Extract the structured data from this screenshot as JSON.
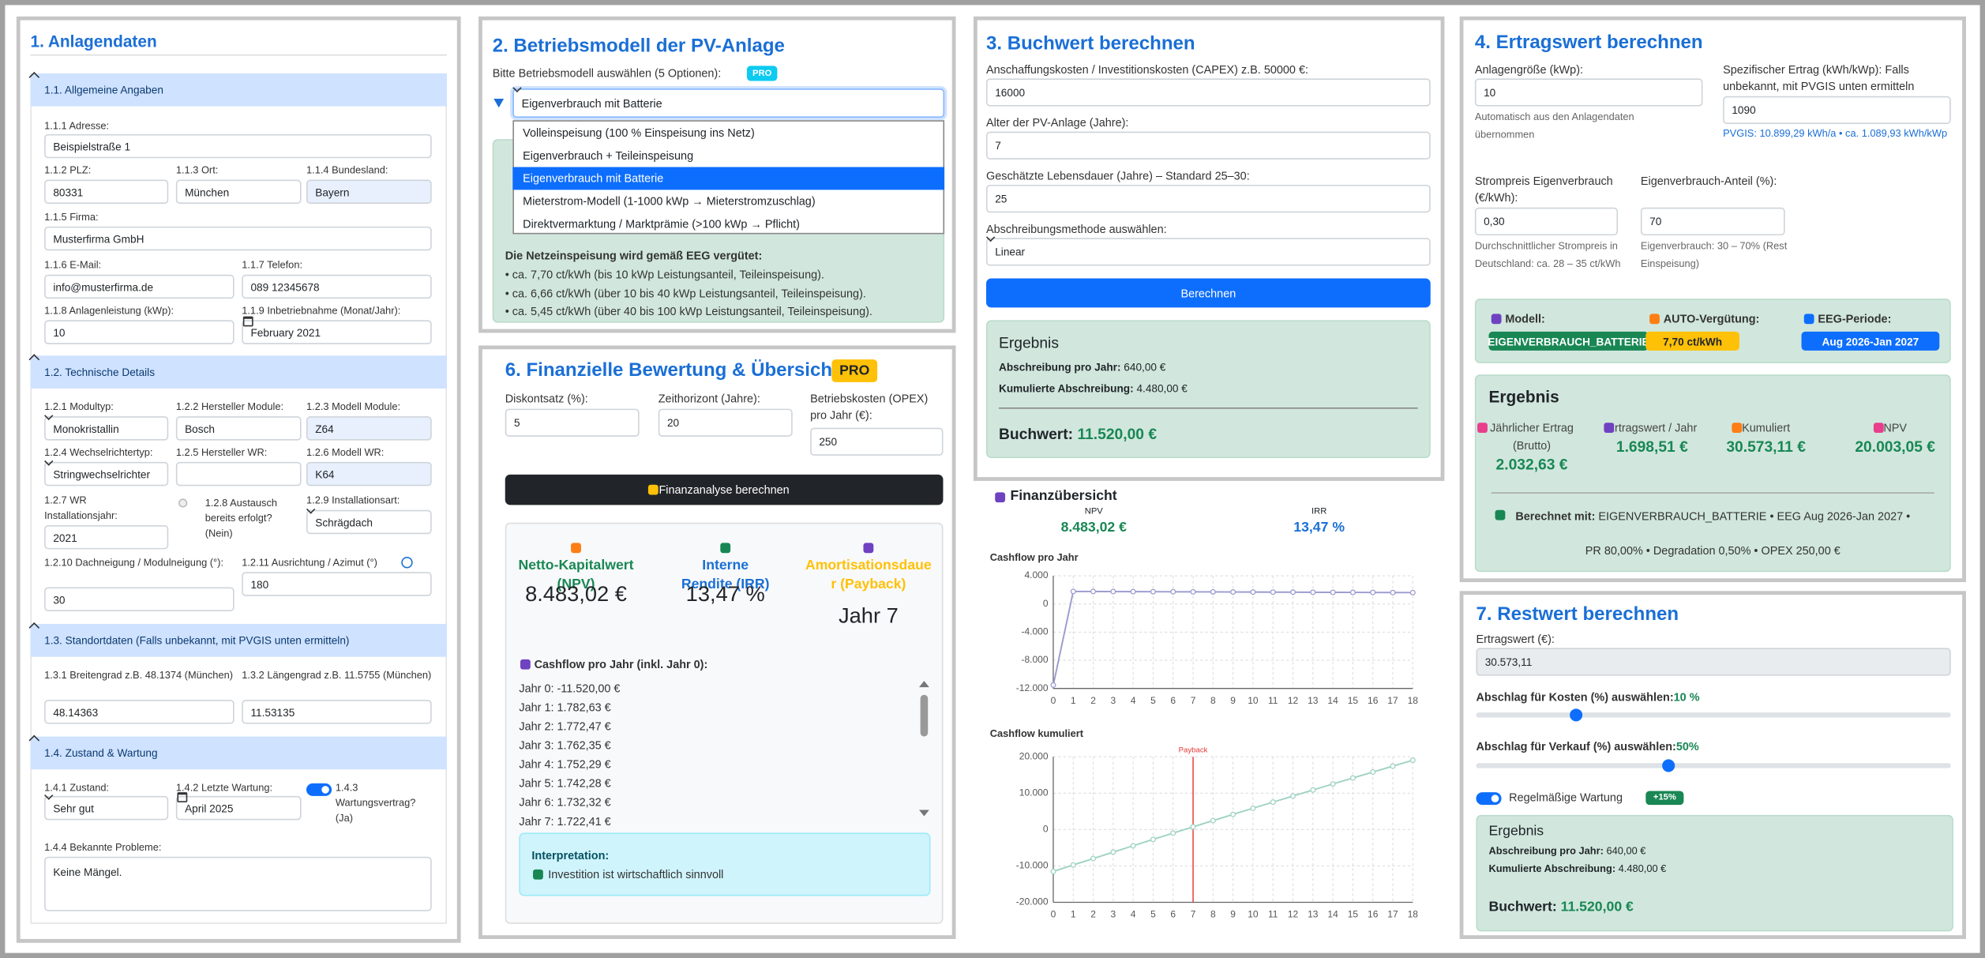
{
  "p1": {
    "title": "1. Anlagendaten",
    "s": [
      {
        "title": "1.1. Allgemeine Angaben",
        "f": [
          {
            "label": "1.1.1 Adresse:",
            "value": "Beispielstraße 1"
          },
          {
            "label": "1.1.2 PLZ:",
            "value": "80331"
          },
          {
            "label": "1.1.3 Ort:",
            "value": "München"
          },
          {
            "label": "1.1.4 Bundesland:",
            "value": "Bayern"
          },
          {
            "label": "1.1.5 Firma:",
            "value": "Musterfirma GmbH"
          },
          {
            "label": "1.1.6 E-Mail:",
            "value": "info@musterfirma.de"
          },
          {
            "label": "1.1.7 Telefon:",
            "value": "089 12345678"
          },
          {
            "label": "1.1.8 Anlagenleistung (kWp):",
            "value": "10"
          },
          {
            "label": "1.1.9 Inbetriebnahme (Monat/Jahr):",
            "value": "February 2021"
          }
        ]
      },
      {
        "title": "1.2. Technische Details",
        "f": [
          {
            "label": "1.2.1 Modultyp:",
            "value": "Monokristallin"
          },
          {
            "label": "1.2.2 Hersteller Module:",
            "value": "Bosch"
          },
          {
            "label": "1.2.3 Modell Module:",
            "value": "Z64"
          },
          {
            "label": "1.2.4 Wechselrichtertyp:",
            "value": "Stringwechselrichter"
          },
          {
            "label": "1.2.5 Hersteller WR:"
          },
          {
            "label": "1.2.6 Modell WR:",
            "value": "K64"
          },
          {
            "label": "1.2.7 WR Installationsjahr:",
            "value": "2021"
          },
          {
            "label": "1.2.8 Austausch bereits erfolgt? (Nein)"
          },
          {
            "label": "1.2.9 Installationsart:",
            "value": "Schrägdach"
          },
          {
            "label": "1.2.10 Dachneigung / Modulneigung (°):",
            "value": "30"
          },
          {
            "label": "1.2.11 Ausrichtung / Azimut (°)",
            "value": "180"
          }
        ]
      },
      {
        "title": "1.3. Standortdaten (Falls unbekannt, mit PVGIS unten ermitteln)",
        "f": [
          {
            "label": "1.3.1 Breitengrad z.B. 48.1374 (München)",
            "value": "48.14363"
          },
          {
            "label": "1.3.2 Längengrad z.B. 11.5755 (München)",
            "value": "11.53135"
          }
        ]
      },
      {
        "title": "1.4. Zustand & Wartung",
        "f": [
          {
            "label": "1.4.1 Zustand:",
            "value": "Sehr gut"
          },
          {
            "label": "1.4.2 Letzte Wartung:",
            "value": "April 2025"
          },
          {
            "label": "1.4.3 Wartungsvertrag? (Ja)"
          },
          {
            "label": "1.4.4 Bekannte Probleme:",
            "value": "Keine Mängel."
          }
        ]
      }
    ]
  },
  "p2": {
    "title": "2. Betriebsmodell der PV-Anlage",
    "prompt": "Bitte Betriebsmodell auswählen (5 Optionen):",
    "badge": "PRO",
    "selected": "Eigenverbrauch mit Batterie",
    "options": [
      "Volleinspeisung (100 % Einspeisung ins Netz)",
      "Eigenverbrauch + Teileinspeisung",
      "Eigenverbrauch mit Batterie",
      "Mieterstrom-Modell (1-1000 kWp → Mieterstromzuschlag)",
      "Direktvermarktung / Marktprämie (>100 kWp → Pflicht)"
    ],
    "eeg_title": "Die Netzeinspeisung wird gemäß EEG vergütet:",
    "eeg": [
      "• ca. 7,70 ct/kWh (bis 10 kWp Leistungsanteil, Teileinspeisung).",
      "• ca. 6,66 ct/kWh (über 10 bis 40 kWp Leistungsanteil, Teileinspeisung).",
      "• ca. 5,45 ct/kWh (über 40 bis 100 kWp Leistungsanteil, Teileinspeisung)."
    ]
  },
  "p3": {
    "title": "3. Buchwert berechnen",
    "f": [
      {
        "label": "Anschaffungskosten / Investitionskosten (CAPEX) z.B. 50000 €:",
        "value": "16000"
      },
      {
        "label": "Alter der PV-Anlage (Jahre):",
        "value": "7"
      },
      {
        "label": "Geschätzte Lebensdauer (Jahre) – Standard 25–30:",
        "value": "25"
      },
      {
        "label": "Abschreibungsmethode auswählen:",
        "value": "Linear"
      }
    ],
    "button": "Berechnen",
    "result": {
      "title": "Ergebnis",
      "rows": [
        {
          "label": "Abschreibung pro Jahr:",
          "value": "640,00 €"
        },
        {
          "label": "Kumulierte Abschreibung:",
          "value": "4.480,00 €"
        }
      ],
      "total": {
        "label": "Buchwert:",
        "value": "11.520,00 €"
      }
    }
  },
  "p4": {
    "title": "4. Ertragswert berechnen",
    "f": [
      {
        "label": "Anlagengröße (kWp):",
        "value": "10",
        "note": "Automatisch aus den Anlagendaten übernommen"
      },
      {
        "label": "Spezifischer Ertrag (kWh/kWp): Falls unbekannt, mit PVGIS unten ermitteln",
        "value": "1090",
        "note": "PVGIS: 10.899,29 kWh/a • ca. 1.089,93 kWh/kWp"
      },
      {
        "label": "Strompreis Eigenverbrauch (€/kWh):",
        "value": "0,30",
        "note": "Durchschnittlicher Strompreis in Deutschland: ca. 28 – 35 ct/kWh"
      },
      {
        "label": "Eigenverbrauch-Anteil (%):",
        "value": "70",
        "note": "Eigenverbrauch: 30 – 70% (Rest Einspeisung)"
      }
    ],
    "info": [
      {
        "label": "Modell:",
        "value": "EIGENVERBRAUCH_BATTERIE"
      },
      {
        "label": "AUTO-Vergütung:",
        "value": "7,70 ct/kWh"
      },
      {
        "label": "EEG-Periode:",
        "value": "Aug 2026-Jan 2027"
      }
    ],
    "result": {
      "title": "Ergebnis",
      "kpis": [
        {
          "label": "Jährlicher Ertrag (Brutto)",
          "value": "2.032,63 €"
        },
        {
          "label": "Ertragswert / Jahr",
          "value": "1.698,51 €"
        },
        {
          "label": "Kumuliert",
          "value": "30.573,11 €"
        },
        {
          "label": "NPV",
          "value": "20.003,05 €"
        }
      ],
      "basis_label": "Berechnet mit:",
      "basis": "EIGENVERBRAUCH_BATTERIE • EEG Aug 2026-Jan 2027 •",
      "params": "PR 80,00% • Degradation 0,50% • OPEX 250,00 €"
    }
  },
  "p6": {
    "title": "6. Finanzielle Bewertung & Übersicht",
    "badge": "PRO",
    "f": [
      {
        "label": "Diskontsatz (%):",
        "value": "5"
      },
      {
        "label": "Zeithorizont (Jahre):",
        "value": "20"
      },
      {
        "label": "Betriebskosten (OPEX) pro Jahr (€):",
        "value": "250"
      }
    ],
    "button": "Finanzanalyse berechnen",
    "kpis": [
      {
        "label": "Netto-Kapitalwert (NPV)",
        "value": "8.483,02 €"
      },
      {
        "label": "Interne Rendite (IRR)",
        "value": "13,47 %"
      },
      {
        "label": "Amortisationsdauer (Payback)",
        "value": "Jahr 7"
      }
    ],
    "cf_title": "Cashflow pro Jahr (inkl. Jahr 0):",
    "cf": [
      "Jahr 0: -11.520,00 €",
      "Jahr 1: 1.782,63 €",
      "Jahr 2: 1.772,47 €",
      "Jahr 3: 1.762,35 €",
      "Jahr 4: 1.752,29 €",
      "Jahr 5: 1.742,28 €",
      "Jahr 6: 1.732,32 €",
      "Jahr 7: 1.722,41 €"
    ],
    "interp_title": "Interpretation:",
    "interp": "Investition ist wirtschaftlich sinnvoll"
  },
  "overview": {
    "title": "Finanzübersicht",
    "kpis": [
      {
        "label": "NPV",
        "value": "8.483,02 €"
      },
      {
        "label": "IRR",
        "value": "13,47 %"
      }
    ]
  },
  "chart_data": [
    {
      "type": "line",
      "title": "Cashflow pro Jahr",
      "x": [
        0,
        1,
        2,
        3,
        4,
        5,
        6,
        7,
        8,
        9,
        10,
        11,
        12,
        13,
        14,
        15,
        16,
        17,
        18
      ],
      "series": [
        {
          "color": "#9b9bd0",
          "values": [
            -11520,
            1782.63,
            1772.47,
            1762.35,
            1752.29,
            1742.28,
            1732.32,
            1722.41,
            1712.5,
            1702.7,
            1693,
            1683.3,
            1673.6,
            1664,
            1654.5,
            1645,
            1635.6,
            1626.3,
            1617
          ]
        }
      ],
      "xlim": [
        0,
        18
      ],
      "xticks": [
        0,
        1,
        2,
        3,
        4,
        5,
        6,
        7,
        8,
        9,
        10,
        11,
        12,
        13,
        14,
        15,
        16,
        17,
        18
      ],
      "ylim": [
        -12000,
        4000
      ],
      "yticks": [
        {
          "value": -12000,
          "label": "-12.000"
        },
        {
          "value": -8000,
          "label": "-8.000"
        },
        {
          "value": -4000,
          "label": "-4.000"
        },
        0,
        {
          "value": 4000,
          "label": "4.000"
        }
      ],
      "grid": true
    },
    {
      "type": "line",
      "title": "Cashflow kumuliert",
      "x": [
        0,
        1,
        2,
        3,
        4,
        5,
        6,
        7,
        8,
        9,
        10,
        11,
        12,
        13,
        14,
        15,
        16,
        17,
        18
      ],
      "series": [
        {
          "color": "#9fd3c4",
          "values": [
            -11520,
            -9737.37,
            -7964.9,
            -6202.55,
            -4450.26,
            -2707.98,
            -975.66,
            746.75,
            2459.25,
            4161.95,
            5854.95,
            7538.25,
            9211.85,
            10875.85,
            12530.35,
            14175.35,
            15810.95,
            17437.25,
            19054.25
          ]
        }
      ],
      "xlim": [
        0,
        18
      ],
      "xticks": [
        0,
        1,
        2,
        3,
        4,
        5,
        6,
        7,
        8,
        9,
        10,
        11,
        12,
        13,
        14,
        15,
        16,
        17,
        18
      ],
      "ylim": [
        -20000,
        20000
      ],
      "yticks": [
        {
          "value": -20000,
          "label": "-20.000"
        },
        {
          "value": -10000,
          "label": "-10.000"
        },
        0,
        {
          "value": 10000,
          "label": "10.000"
        },
        {
          "value": 20000,
          "label": "20.000"
        }
      ],
      "grid": true,
      "annotation": {
        "x": 7,
        "label": "Payback",
        "color": "#e53935"
      }
    }
  ],
  "p7": {
    "title": "7. Restwert berechnen",
    "f": {
      "label": "Ertragswert (€):",
      "value": "30.573,11"
    },
    "sliders": [
      {
        "label": "Abschlag für Kosten (%) auswählen:",
        "value": "10 %"
      },
      {
        "label": "Abschlag für Verkauf (%) auswählen:",
        "value": "50%"
      }
    ],
    "toggle": "Regelmäßige Wartung",
    "badge": "+15%",
    "result": {
      "title": "Ergebnis",
      "rows": [
        {
          "label": "Abschreibung pro Jahr:",
          "value": "640,00 €"
        },
        {
          "label": "Kumulierte Abschreibung:",
          "value": "4.480,00 €"
        }
      ],
      "total": {
        "label": "Buchwert:",
        "value": "11.520,00 €"
      }
    }
  }
}
